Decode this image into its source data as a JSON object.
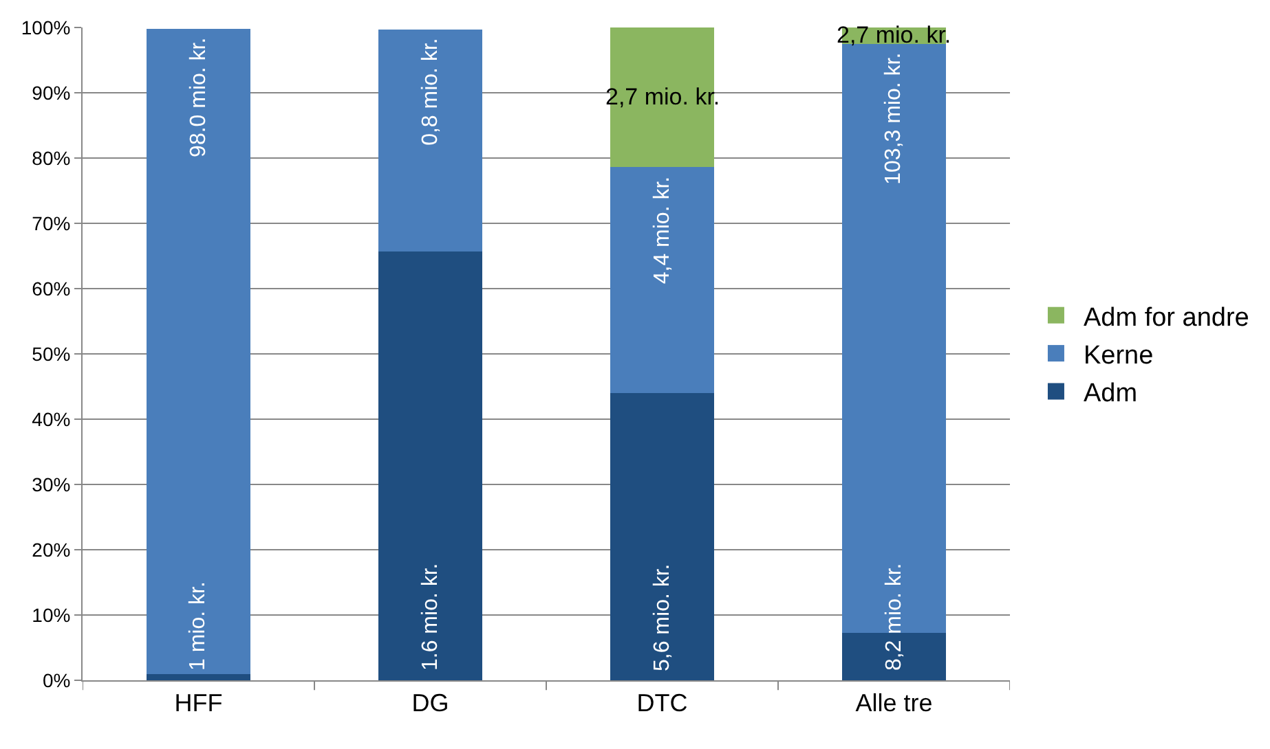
{
  "chart_data": {
    "type": "bar",
    "stacked": true,
    "categories": [
      "HFF",
      "DG",
      "DTC",
      "Alle tre"
    ],
    "series": [
      {
        "name": "Adm",
        "color": "#1f4e80",
        "values": [
          1,
          65.7,
          44,
          7.3
        ]
      },
      {
        "name": "Kerne",
        "color": "#4a7ebb",
        "values": [
          98.8,
          34,
          34.6,
          90.2
        ]
      },
      {
        "name": "Adm for andre",
        "color": "#8bb660",
        "values": [
          null,
          null,
          21.4,
          2.5
        ]
      }
    ],
    "annotations": [
      "1 mio. kr.",
      "1.6 mio. kr.",
      "5,6 mio. kr.",
      "8,2 mio. kr.",
      "98.0 mio. kr.",
      "0,8 mio. kr.",
      "4,4 mio. kr.",
      "103,3 mio. kr.",
      "2,7 mio. kr.",
      "2,7 mio. kr."
    ],
    "ylim": [
      0,
      100
    ],
    "yticks": [
      {
        "value": 0,
        "label": "0%"
      },
      {
        "value": 10,
        "label": "10%"
      },
      {
        "value": 20,
        "label": "20%"
      },
      {
        "value": 30,
        "label": "30%"
      },
      {
        "value": 40,
        "label": "40%"
      },
      {
        "value": 50,
        "label": "50%"
      },
      {
        "value": 60,
        "label": "60%"
      },
      {
        "value": 70,
        "label": "70%"
      },
      {
        "value": 80,
        "label": "80%"
      },
      {
        "value": 90,
        "label": "90%"
      },
      {
        "value": 100,
        "label": "100%"
      }
    ],
    "grid": "y",
    "legend": "right"
  }
}
